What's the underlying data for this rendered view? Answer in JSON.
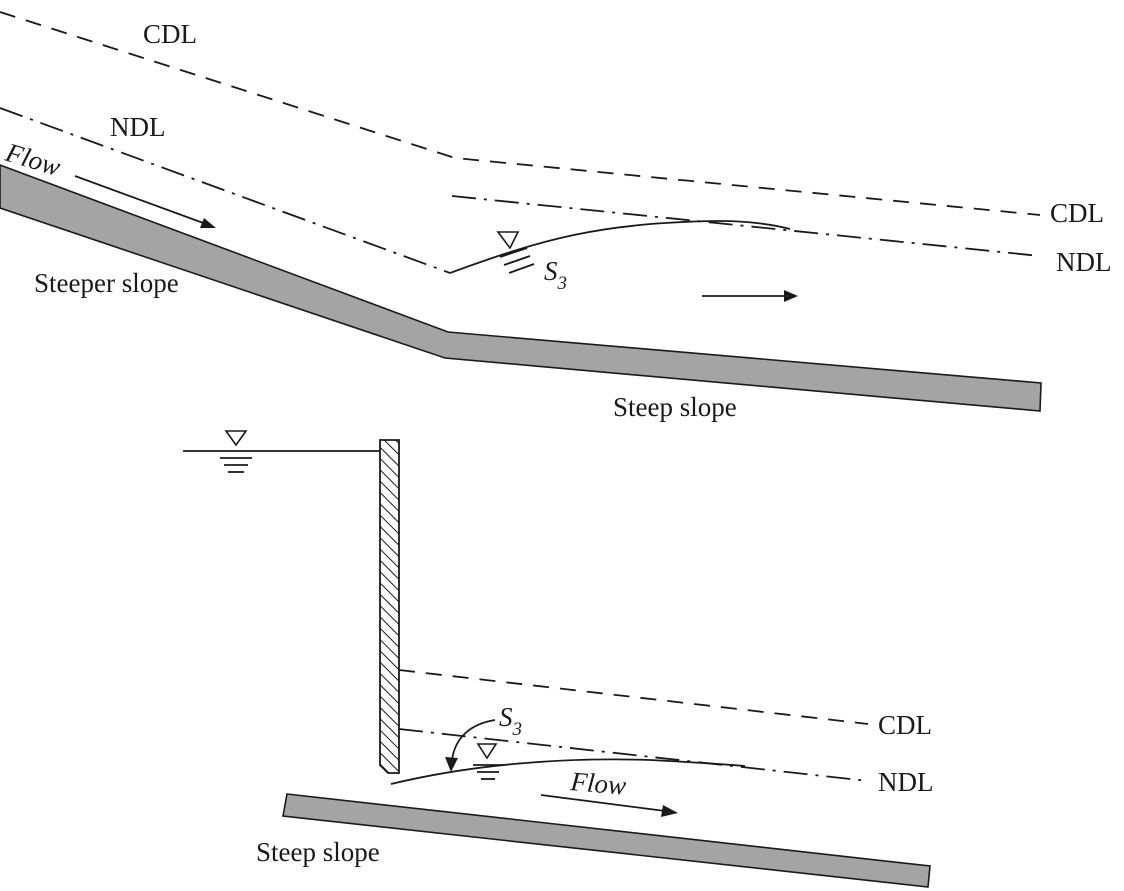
{
  "top": {
    "cdl_left": "CDL",
    "ndl_left": "NDL",
    "flow": "Flow",
    "steeper_slope": "Steeper slope",
    "s_letter": "S",
    "s_sub": "3",
    "cdl_right": "CDL",
    "ndl_right": "NDL",
    "steep_slope": "Steep slope"
  },
  "bottom": {
    "s_letter": "S",
    "s_sub": "3",
    "cdl": "CDL",
    "ndl": "NDL",
    "flow": "Flow",
    "steep_slope": "Steep slope"
  },
  "colors": {
    "bed_fill": "#a4a4a6",
    "ink": "#1a1a1a"
  }
}
